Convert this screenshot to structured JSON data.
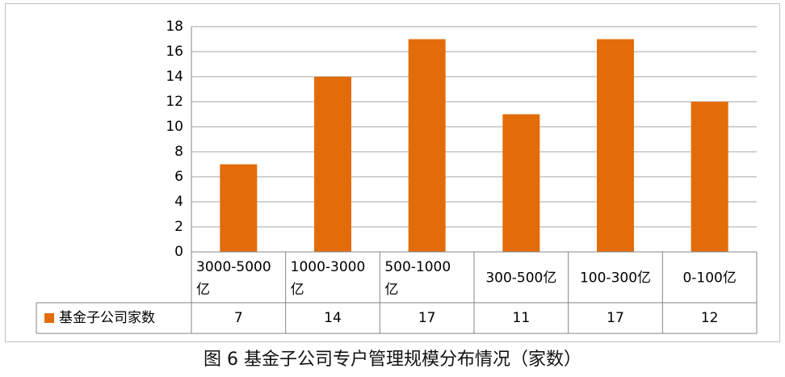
{
  "caption": "图 6 基金子公司专户管理规模分布情况（家数）",
  "colors": {
    "bar": "#e36c0a",
    "grid": "#a6a6a6",
    "axis": "#868686"
  },
  "chart_data": {
    "type": "bar",
    "categories": [
      [
        "3000-5000",
        "亿"
      ],
      [
        "1000-3000",
        "亿"
      ],
      [
        "500-1000",
        "亿"
      ],
      [
        "300-500亿"
      ],
      [
        "100-300亿"
      ],
      [
        "0-100亿"
      ]
    ],
    "series": [
      {
        "name": "基金子公司家数",
        "values": [
          7,
          14,
          17,
          11,
          17,
          12
        ]
      }
    ],
    "ylim": [
      0,
      18
    ],
    "yticks": [
      0,
      2,
      4,
      6,
      8,
      10,
      12,
      14,
      16,
      18
    ],
    "grid": true,
    "data_table": true,
    "legend": "data-table-left"
  }
}
